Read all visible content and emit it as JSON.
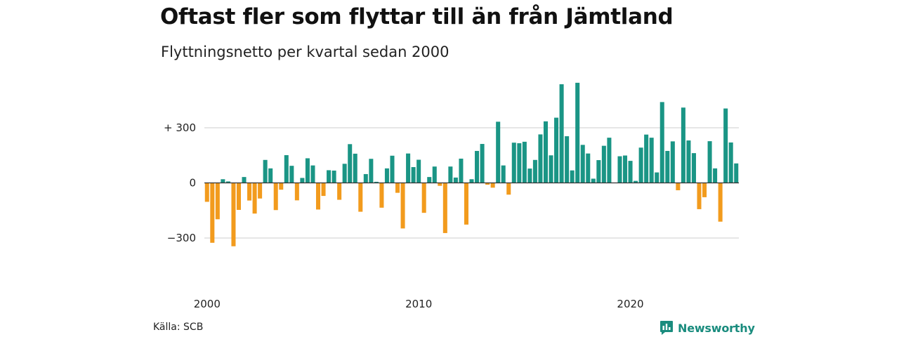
{
  "header": {
    "title": "Oftast fler som flyttar till än från Jämtland",
    "subtitle": "Flyttningsnetto per kvartal sedan 2000"
  },
  "footer": {
    "source": "Källa: SCB",
    "brand": "Newsworthy"
  },
  "colors": {
    "positive": "#1a9585",
    "negative": "#f29b1d",
    "grid": "#dddddd",
    "zero_line": "#333333",
    "brand": "#1a8c7e"
  },
  "chart_data": {
    "type": "bar",
    "title": "Oftast fler som flyttar till än från Jämtland",
    "subtitle": "Flyttningsnetto per kvartal sedan 2000",
    "xlabel": "",
    "ylabel": "",
    "x_tick_labels": [
      "2000",
      "2010",
      "2020"
    ],
    "y_ticks": [
      {
        "value": 300,
        "label": "+ 300"
      },
      {
        "value": 0,
        "label": "0"
      },
      {
        "value": -300,
        "label": "−300"
      }
    ],
    "ylim": [
      -450,
      550
    ],
    "grid": true,
    "legend": "none",
    "categories": [
      "2000K1",
      "2000K2",
      "2000K3",
      "2000K4",
      "2001K1",
      "2001K2",
      "2001K3",
      "2001K4",
      "2002K1",
      "2002K2",
      "2002K3",
      "2002K4",
      "2003K1",
      "2003K2",
      "2003K3",
      "2003K4",
      "2004K1",
      "2004K2",
      "2004K3",
      "2004K4",
      "2005K1",
      "2005K2",
      "2005K3",
      "2005K4",
      "2006K1",
      "2006K2",
      "2006K3",
      "2006K4",
      "2007K1",
      "2007K2",
      "2007K3",
      "2007K4",
      "2008K1",
      "2008K2",
      "2008K3",
      "2008K4",
      "2009K1",
      "2009K2",
      "2009K3",
      "2009K4",
      "2010K1",
      "2010K2",
      "2010K3",
      "2010K4",
      "2011K1",
      "2011K2",
      "2011K3",
      "2011K4",
      "2012K1",
      "2012K2",
      "2012K3",
      "2012K4",
      "2013K1",
      "2013K2",
      "2013K3",
      "2013K4",
      "2014K1",
      "2014K2",
      "2014K3",
      "2014K4",
      "2015K1",
      "2015K2",
      "2015K3",
      "2015K4",
      "2016K1",
      "2016K2",
      "2016K3",
      "2016K4",
      "2017K1",
      "2017K2",
      "2017K3",
      "2017K4",
      "2018K1",
      "2018K2",
      "2018K3",
      "2018K4",
      "2019K1",
      "2019K2",
      "2019K3",
      "2019K4",
      "2020K1",
      "2020K2",
      "2020K3",
      "2020K4",
      "2021K1",
      "2021K2",
      "2021K3",
      "2021K4",
      "2022K1",
      "2022K2",
      "2022K3",
      "2022K4",
      "2023K1",
      "2023K2",
      "2023K3",
      "2023K4",
      "2024K1",
      "2024K2",
      "2024K3",
      "2024K4",
      "2025K1"
    ],
    "values": [
      -103,
      -326,
      -198,
      20,
      8,
      -345,
      -147,
      32,
      -96,
      -167,
      -85,
      125,
      79,
      -148,
      -37,
      151,
      93,
      -95,
      27,
      134,
      95,
      -145,
      -71,
      69,
      67,
      -92,
      104,
      211,
      159,
      -157,
      48,
      131,
      6,
      -135,
      79,
      148,
      -54,
      -248,
      160,
      86,
      126,
      -163,
      32,
      89,
      -16,
      -273,
      89,
      29,
      132,
      -227,
      20,
      174,
      212,
      -10,
      -26,
      333,
      95,
      -64,
      219,
      216,
      224,
      78,
      125,
      264,
      335,
      150,
      355,
      537,
      254,
      68,
      545,
      207,
      160,
      23,
      124,
      202,
      246,
      0,
      145,
      149,
      120,
      11,
      192,
      263,
      246,
      57,
      440,
      174,
      226,
      -40,
      410,
      231,
      162,
      -143,
      -78,
      227,
      79,
      -211,
      405,
      220,
      106
    ]
  }
}
